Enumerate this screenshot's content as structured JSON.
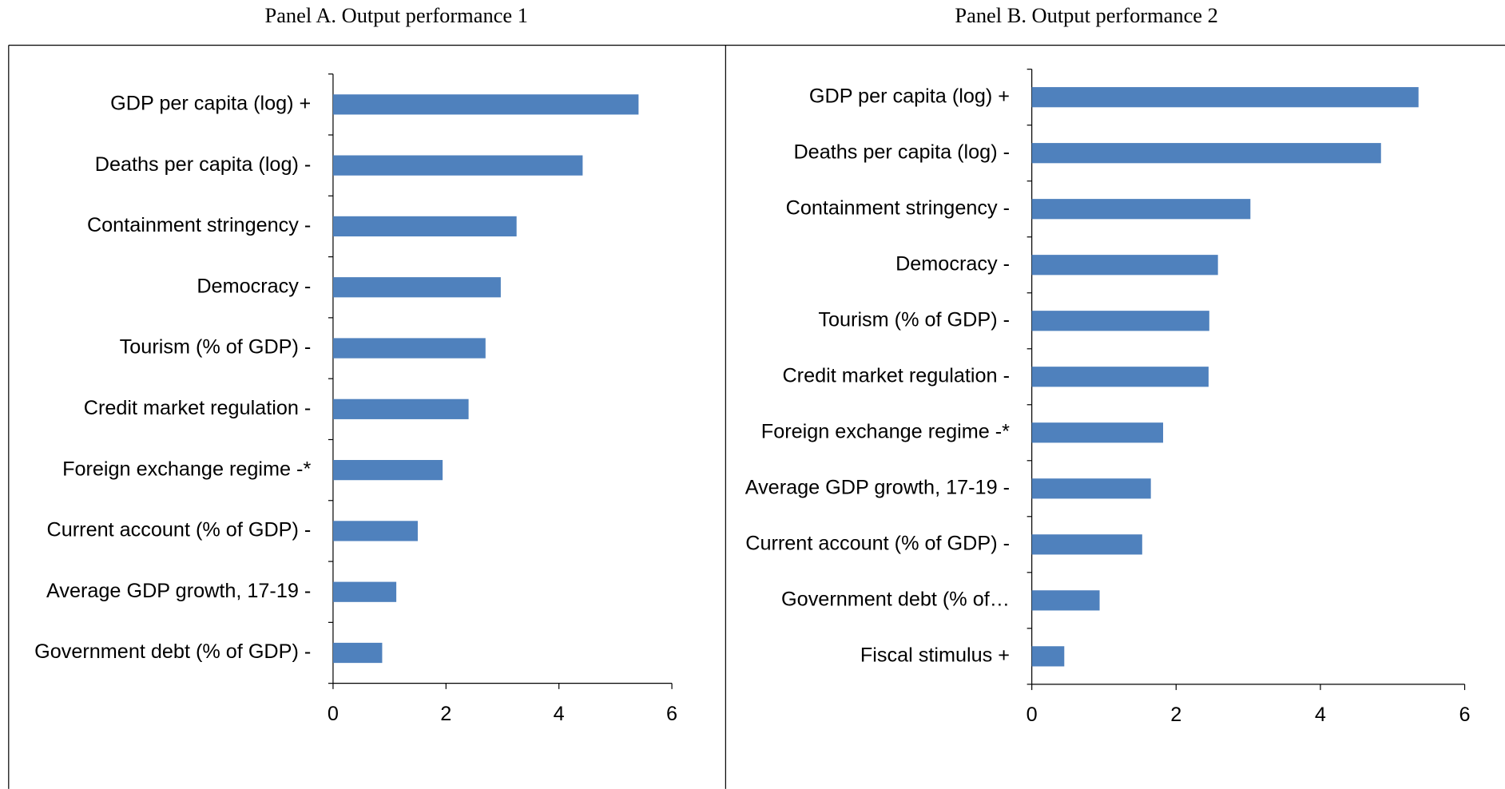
{
  "chart_data": [
    {
      "type": "bar",
      "orientation": "horizontal",
      "title": "Panel A. Output performance 1",
      "categories": [
        "GDP per capita (log) +",
        "Deaths per capita (log) -",
        "Containment stringency -",
        "Democracy -",
        "Tourism (% of GDP) -",
        "Credit market regulation -",
        "Foreign exchange regime -*",
        "Current account (% of GDP) -",
        "Average GDP growth, 17-19 -",
        "Government debt (% of GDP) -"
      ],
      "values": [
        5.41,
        4.42,
        3.25,
        2.97,
        2.7,
        2.4,
        1.94,
        1.5,
        1.12,
        0.87
      ],
      "color": "#4f81bd",
      "xlim": [
        0,
        6
      ],
      "xticks": [
        0,
        2,
        4,
        6
      ],
      "grid": false
    },
    {
      "type": "bar",
      "orientation": "horizontal",
      "title": "Panel B. Output performance 2",
      "categories": [
        "GDP per capita (log) +",
        "Deaths per capita (log) -",
        "Containment stringency -",
        "Democracy -",
        "Tourism (% of GDP) -",
        "Credit market regulation -",
        "Foreign exchange regime -*",
        "Average GDP growth, 17-19 -",
        "Current account (% of GDP) -",
        "Government debt (% of…",
        "Fiscal stimulus +"
      ],
      "values": [
        5.36,
        4.84,
        3.03,
        2.58,
        2.46,
        2.45,
        1.82,
        1.65,
        1.53,
        0.94,
        0.45
      ],
      "color": "#4f81bd",
      "xlim": [
        0,
        6
      ],
      "xticks": [
        0,
        2,
        4,
        6
      ],
      "grid": false
    }
  ]
}
